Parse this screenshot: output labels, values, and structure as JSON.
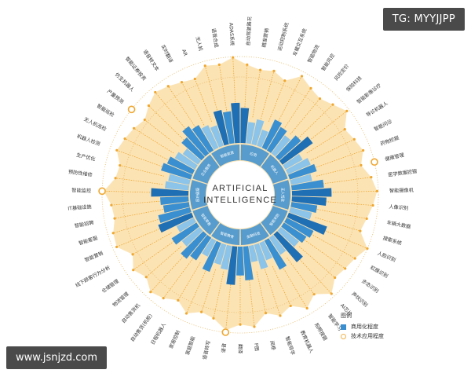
{
  "watermarks": {
    "top": "TG: MYYJJPP",
    "bottom": "www.jsnjzd.com"
  },
  "legend": {
    "title": "图例",
    "blue": "商用化程度",
    "orange": "技术应用程度"
  },
  "colors": {
    "blue_dark": "#1f6fb5",
    "blue_mid": "#3a8fd1",
    "blue_light": "#8cc3e8",
    "orange": "#f0a72f",
    "orange_light": "#fbe3b4",
    "ring": "#e9b760"
  },
  "chart_data": {
    "type": "radial-bar",
    "title": "ARTIFICIAL INTELLIGENCE",
    "title_lines": [
      "ARTIFICIAL",
      "INTELLIGENCE"
    ],
    "inner_sectors": [
      "应用",
      "机器人",
      "无人驾驶",
      "智能安防",
      "金融科技",
      "智能教育",
      "智能零售",
      "医疗健康",
      "企业服务",
      "智能家居"
    ],
    "categories": [
      "自动驾驶路况",
      "精准营销",
      "运动控制系统",
      "车载交互系统",
      "智能物流",
      "智能风控",
      "风险定价",
      "保险科技",
      "智能影像诊疗",
      "导诊机器人",
      "智能问诊",
      "药物挖掘",
      "健康管理",
      "医学数据挖掘",
      "智能摄像机",
      "人像识别",
      "车辆大数据",
      "搜索系统",
      "人脸识别",
      "虹膜识别",
      "步态识别",
      "声纹识别",
      "AI芯片",
      "智能学习",
      "拍照搜题",
      "教育机器人",
      "智能导学",
      "阅卷",
      "P图",
      "翻译",
      "语音",
      "语音转写",
      "家庭智能",
      "家居控制",
      "日程机器人",
      "自动售货(机柜)",
      "自动售货机",
      "物流管理",
      "仓储管理",
      "线下顾客行为分析",
      "智能营销",
      "智能客服",
      "智能招聘",
      "IT基础设施",
      "智能监控",
      "预防性维修",
      "生产优化",
      "机器人检测",
      "无人机巡检",
      "智能巡检",
      "产量预测",
      "仿生机器人",
      "智能证券投资",
      "语音转文本",
      "实时翻译",
      "AR",
      "无人机",
      "语音合成",
      "ADAS系统"
    ],
    "values_commercial": [
      62,
      38,
      45,
      30,
      55,
      48,
      40,
      52,
      66,
      35,
      44,
      50,
      38,
      57,
      70,
      61,
      46,
      39,
      72,
      53,
      47,
      41,
      64,
      36,
      58,
      33,
      45,
      29,
      60,
      51,
      68,
      43,
      37,
      55,
      32,
      48,
      56,
      40,
      52,
      34,
      63,
      58,
      46,
      50,
      66,
      42,
      38,
      55,
      49,
      41,
      33,
      47,
      60,
      52,
      44,
      38,
      62,
      57,
      71
    ],
    "values_technical": [
      74,
      66,
      70,
      58,
      81,
      69,
      63,
      72,
      85,
      60,
      67,
      75,
      62,
      78,
      88,
      80,
      71,
      64,
      90,
      76,
      70,
      65,
      83,
      61,
      77,
      57,
      68,
      55,
      79,
      73,
      86,
      66,
      60,
      74,
      58,
      71,
      78,
      63,
      75,
      59,
      82,
      79,
      69,
      72,
      87,
      65,
      61,
      76,
      70,
      64,
      56,
      69,
      80,
      74,
      67,
      62,
      81,
      77,
      89
    ],
    "commercial_range": [
      0,
      100
    ],
    "technical_range": [
      0,
      100
    ]
  }
}
